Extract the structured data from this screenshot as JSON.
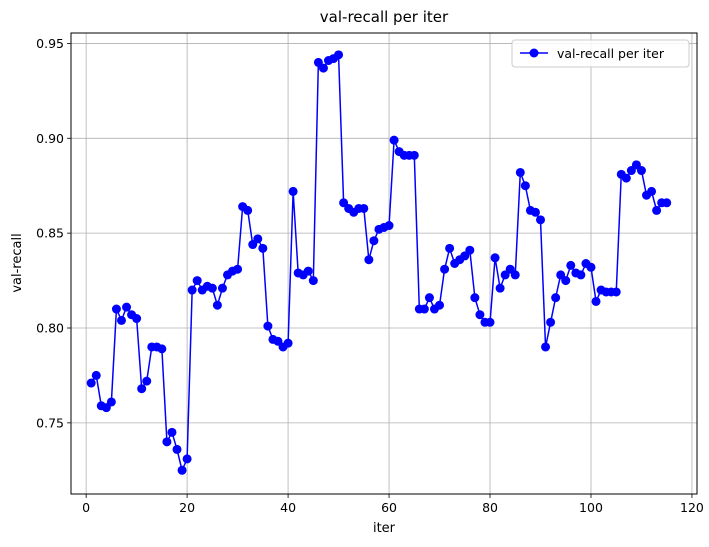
{
  "chart_data": {
    "type": "line",
    "title": "val-recall per iter",
    "xlabel": "iter",
    "ylabel": "val-recall",
    "xlim": [
      -3,
      121
    ],
    "ylim": [
      0.7125,
      0.9555
    ],
    "xticks": [
      0,
      20,
      40,
      60,
      80,
      100,
      120
    ],
    "xtick_labels": [
      "0",
      "20",
      "40",
      "60",
      "80",
      "100",
      "120"
    ],
    "yticks": [
      0.75,
      0.8,
      0.85,
      0.9,
      0.95
    ],
    "ytick_labels": [
      "0.75",
      "0.80",
      "0.85",
      "0.90",
      "0.95"
    ],
    "grid": true,
    "legend": "top-right",
    "colors": {
      "series": "#0000ff",
      "grid": "#b0b0b0",
      "axes": "#000000"
    },
    "series": [
      {
        "name": "val-recall per iter",
        "marker": "circle",
        "x": [
          1,
          2,
          3,
          4,
          5,
          6,
          7,
          8,
          9,
          10,
          11,
          12,
          13,
          14,
          15,
          16,
          17,
          18,
          19,
          20,
          21,
          22,
          23,
          24,
          25,
          26,
          27,
          28,
          29,
          30,
          31,
          32,
          33,
          34,
          35,
          36,
          37,
          38,
          39,
          40,
          41,
          42,
          43,
          44,
          45,
          46,
          47,
          48,
          49,
          50,
          51,
          52,
          53,
          54,
          55,
          56,
          57,
          58,
          59,
          60,
          61,
          62,
          63,
          64,
          65,
          66,
          67,
          68,
          69,
          70,
          71,
          72,
          73,
          74,
          75,
          76,
          77,
          78,
          79,
          80,
          81,
          82,
          83,
          84,
          85,
          86,
          87,
          88,
          89,
          90,
          91,
          92,
          93,
          94,
          95,
          96,
          97,
          98,
          99,
          100,
          101,
          102,
          103,
          104,
          105,
          106,
          107,
          108,
          109,
          110,
          111,
          112,
          113,
          114,
          115
        ],
        "y": [
          0.771,
          0.775,
          0.759,
          0.758,
          0.761,
          0.81,
          0.804,
          0.811,
          0.807,
          0.805,
          0.768,
          0.772,
          0.79,
          0.79,
          0.789,
          0.74,
          0.745,
          0.736,
          0.725,
          0.731,
          0.82,
          0.825,
          0.82,
          0.822,
          0.821,
          0.812,
          0.821,
          0.828,
          0.83,
          0.831,
          0.864,
          0.862,
          0.844,
          0.847,
          0.842,
          0.801,
          0.794,
          0.793,
          0.79,
          0.792,
          0.872,
          0.829,
          0.828,
          0.83,
          0.825,
          0.94,
          0.937,
          0.941,
          0.942,
          0.944,
          0.866,
          0.863,
          0.861,
          0.863,
          0.863,
          0.836,
          0.846,
          0.852,
          0.853,
          0.854,
          0.899,
          0.893,
          0.891,
          0.891,
          0.891,
          0.81,
          0.81,
          0.816,
          0.81,
          0.812,
          0.831,
          0.842,
          0.834,
          0.836,
          0.838,
          0.841,
          0.816,
          0.807,
          0.803,
          0.803,
          0.837,
          0.821,
          0.828,
          0.831,
          0.828,
          0.882,
          0.875,
          0.862,
          0.861,
          0.857,
          0.79,
          0.803,
          0.816,
          0.828,
          0.825,
          0.833,
          0.829,
          0.828,
          0.834,
          0.832,
          0.814,
          0.82,
          0.819,
          0.819,
          0.819,
          0.881,
          0.879,
          0.883,
          0.886,
          0.883,
          0.87,
          0.872,
          0.862,
          0.866,
          0.866
        ]
      }
    ]
  }
}
